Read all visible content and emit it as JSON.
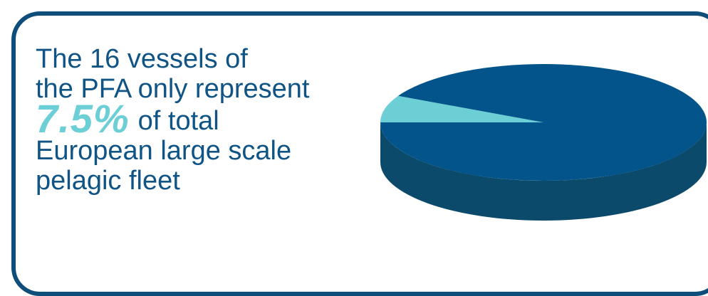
{
  "headline": {
    "line1": "The 16 vessels of",
    "line2": "the PFA only represent",
    "highlight": "7.5%",
    "line3_rest": "of total",
    "line4": "European large scale",
    "line5": "pelagic fleet"
  },
  "chart_data": {
    "type": "pie",
    "style": "3d",
    "slices": [
      {
        "value": 7.5,
        "color": "#6ccfd6"
      },
      {
        "value": 92.5,
        "color": "#02548b"
      }
    ],
    "side_color": "#0c4a6c",
    "start_angle_deg": 180
  }
}
